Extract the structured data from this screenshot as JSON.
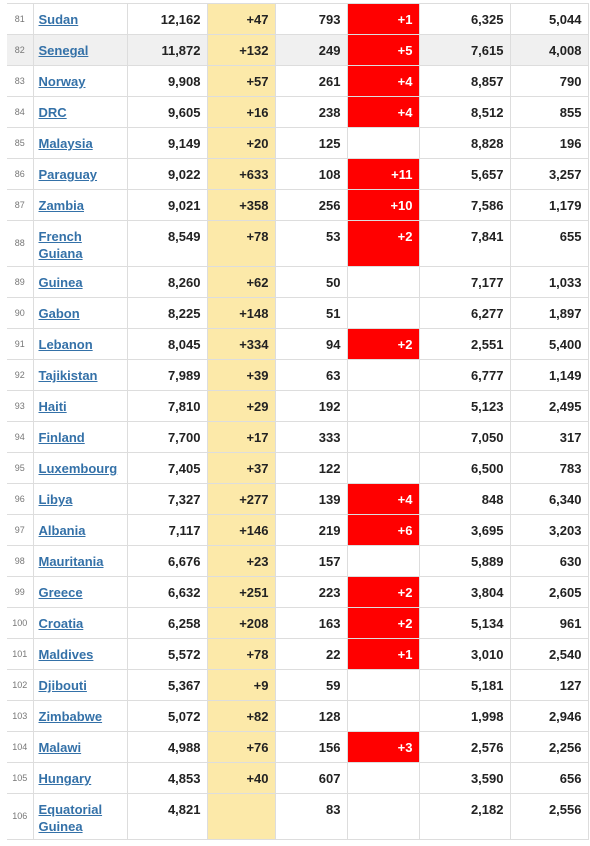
{
  "rows": [
    {
      "rank": "81",
      "country": "Sudan",
      "total": "12,162",
      "new": "+47",
      "deaths": "793",
      "new_deaths": "+1",
      "recovered": "6,325",
      "active": "5,044",
      "h": 31,
      "hl": false
    },
    {
      "rank": "82",
      "country": "Senegal",
      "total": "11,872",
      "new": "+132",
      "deaths": "249",
      "new_deaths": "+5",
      "recovered": "7,615",
      "active": "4,008",
      "h": 31,
      "hl": true
    },
    {
      "rank": "83",
      "country": "Norway",
      "total": "9,908",
      "new": "+57",
      "deaths": "261",
      "new_deaths": "+4",
      "recovered": "8,857",
      "active": "790",
      "h": 31,
      "hl": false
    },
    {
      "rank": "84",
      "country": "DRC",
      "total": "9,605",
      "new": "+16",
      "deaths": "238",
      "new_deaths": "+4",
      "recovered": "8,512",
      "active": "855",
      "h": 31,
      "hl": false
    },
    {
      "rank": "85",
      "country": "Malaysia",
      "total": "9,149",
      "new": "+20",
      "deaths": "125",
      "new_deaths": "",
      "recovered": "8,828",
      "active": "196",
      "h": 31,
      "hl": false
    },
    {
      "rank": "86",
      "country": "Paraguay",
      "total": "9,022",
      "new": "+633",
      "deaths": "108",
      "new_deaths": "+11",
      "recovered": "5,657",
      "active": "3,257",
      "h": 31,
      "hl": false
    },
    {
      "rank": "87",
      "country": "Zambia",
      "total": "9,021",
      "new": "+358",
      "deaths": "256",
      "new_deaths": "+10",
      "recovered": "7,586",
      "active": "1,179",
      "h": 31,
      "hl": false
    },
    {
      "rank": "88",
      "country": "French Guiana",
      "total": "8,549",
      "new": "+78",
      "deaths": "53",
      "new_deaths": "+2",
      "recovered": "7,841",
      "active": "655",
      "h": 46,
      "hl": false
    },
    {
      "rank": "89",
      "country": "Guinea",
      "total": "8,260",
      "new": "+62",
      "deaths": "50",
      "new_deaths": "",
      "recovered": "7,177",
      "active": "1,033",
      "h": 31,
      "hl": false
    },
    {
      "rank": "90",
      "country": "Gabon",
      "total": "8,225",
      "new": "+148",
      "deaths": "51",
      "new_deaths": "",
      "recovered": "6,277",
      "active": "1,897",
      "h": 31,
      "hl": false
    },
    {
      "rank": "91",
      "country": "Lebanon",
      "total": "8,045",
      "new": "+334",
      "deaths": "94",
      "new_deaths": "+2",
      "recovered": "2,551",
      "active": "5,400",
      "h": 31,
      "hl": false
    },
    {
      "rank": "92",
      "country": "Tajikistan",
      "total": "7,989",
      "new": "+39",
      "deaths": "63",
      "new_deaths": "",
      "recovered": "6,777",
      "active": "1,149",
      "h": 31,
      "hl": false
    },
    {
      "rank": "93",
      "country": "Haiti",
      "total": "7,810",
      "new": "+29",
      "deaths": "192",
      "new_deaths": "",
      "recovered": "5,123",
      "active": "2,495",
      "h": 31,
      "hl": false
    },
    {
      "rank": "94",
      "country": "Finland",
      "total": "7,700",
      "new": "+17",
      "deaths": "333",
      "new_deaths": "",
      "recovered": "7,050",
      "active": "317",
      "h": 31,
      "hl": false
    },
    {
      "rank": "95",
      "country": "Luxembourg",
      "total": "7,405",
      "new": "+37",
      "deaths": "122",
      "new_deaths": "",
      "recovered": "6,500",
      "active": "783",
      "h": 31,
      "hl": false
    },
    {
      "rank": "96",
      "country": "Libya",
      "total": "7,327",
      "new": "+277",
      "deaths": "139",
      "new_deaths": "+4",
      "recovered": "848",
      "active": "6,340",
      "h": 31,
      "hl": false
    },
    {
      "rank": "97",
      "country": "Albania",
      "total": "7,117",
      "new": "+146",
      "deaths": "219",
      "new_deaths": "+6",
      "recovered": "3,695",
      "active": "3,203",
      "h": 31,
      "hl": false
    },
    {
      "rank": "98",
      "country": "Mauritania",
      "total": "6,676",
      "new": "+23",
      "deaths": "157",
      "new_deaths": "",
      "recovered": "5,889",
      "active": "630",
      "h": 31,
      "hl": false
    },
    {
      "rank": "99",
      "country": "Greece",
      "total": "6,632",
      "new": "+251",
      "deaths": "223",
      "new_deaths": "+2",
      "recovered": "3,804",
      "active": "2,605",
      "h": 31,
      "hl": false
    },
    {
      "rank": "100",
      "country": "Croatia",
      "total": "6,258",
      "new": "+208",
      "deaths": "163",
      "new_deaths": "+2",
      "recovered": "5,134",
      "active": "961",
      "h": 31,
      "hl": false
    },
    {
      "rank": "101",
      "country": "Maldives",
      "total": "5,572",
      "new": "+78",
      "deaths": "22",
      "new_deaths": "+1",
      "recovered": "3,010",
      "active": "2,540",
      "h": 31,
      "hl": false
    },
    {
      "rank": "102",
      "country": "Djibouti",
      "total": "5,367",
      "new": "+9",
      "deaths": "59",
      "new_deaths": "",
      "recovered": "5,181",
      "active": "127",
      "h": 31,
      "hl": false
    },
    {
      "rank": "103",
      "country": "Zimbabwe",
      "total": "5,072",
      "new": "+82",
      "deaths": "128",
      "new_deaths": "",
      "recovered": "1,998",
      "active": "2,946",
      "h": 31,
      "hl": false
    },
    {
      "rank": "104",
      "country": "Malawi",
      "total": "4,988",
      "new": "+76",
      "deaths": "156",
      "new_deaths": "+3",
      "recovered": "2,576",
      "active": "2,256",
      "h": 31,
      "hl": false
    },
    {
      "rank": "105",
      "country": "Hungary",
      "total": "4,853",
      "new": "+40",
      "deaths": "607",
      "new_deaths": "",
      "recovered": "3,590",
      "active": "656",
      "h": 31,
      "hl": false
    },
    {
      "rank": "106",
      "country": "Equatorial Guinea",
      "total": "4,821",
      "new": "",
      "deaths": "83",
      "new_deaths": "",
      "recovered": "2,182",
      "active": "2,556",
      "h": 46,
      "hl": false
    }
  ],
  "colors": {
    "new_cases_bg": "#fce9a9",
    "new_deaths_bg": "#ff0000",
    "link": "#3471a8"
  }
}
